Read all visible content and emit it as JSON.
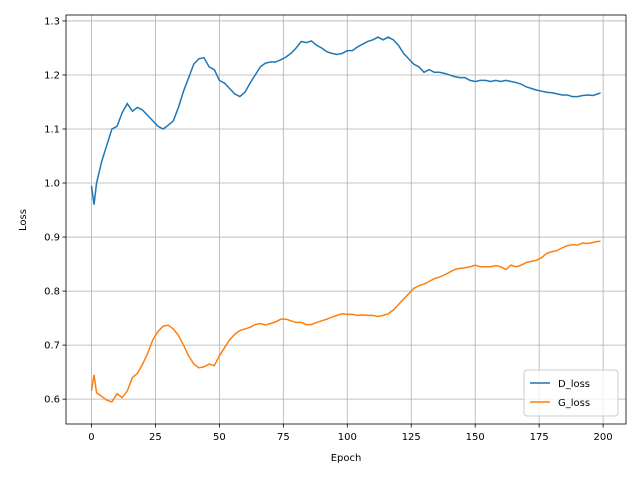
{
  "chart_data": {
    "type": "line",
    "xlabel": "Epoch",
    "ylabel": "Loss",
    "x": [
      0,
      1,
      2,
      4,
      6,
      8,
      10,
      12,
      14,
      16,
      18,
      20,
      22,
      24,
      26,
      28,
      30,
      32,
      34,
      36,
      38,
      40,
      42,
      44,
      46,
      48,
      50,
      52,
      54,
      56,
      58,
      60,
      62,
      64,
      66,
      68,
      70,
      72,
      74,
      76,
      78,
      80,
      82,
      84,
      86,
      88,
      90,
      92,
      94,
      96,
      98,
      100,
      102,
      104,
      106,
      108,
      110,
      112,
      114,
      116,
      118,
      120,
      122,
      124,
      126,
      128,
      130,
      132,
      134,
      136,
      138,
      140,
      142,
      144,
      146,
      148,
      150,
      152,
      154,
      156,
      158,
      160,
      162,
      164,
      166,
      168,
      170,
      172,
      174,
      176,
      178,
      180,
      182,
      184,
      186,
      188,
      190,
      192,
      194,
      196,
      198,
      199
    ],
    "series": [
      {
        "name": "D_loss",
        "color": "#1f77b4",
        "values": [
          0.995,
          0.96,
          1.0,
          1.04,
          1.07,
          1.1,
          1.105,
          1.13,
          1.147,
          1.133,
          1.14,
          1.135,
          1.125,
          1.115,
          1.105,
          1.1,
          1.107,
          1.115,
          1.14,
          1.17,
          1.195,
          1.22,
          1.23,
          1.232,
          1.215,
          1.21,
          1.19,
          1.185,
          1.175,
          1.165,
          1.16,
          1.168,
          1.185,
          1.2,
          1.215,
          1.222,
          1.224,
          1.224,
          1.228,
          1.233,
          1.24,
          1.25,
          1.262,
          1.26,
          1.263,
          1.255,
          1.25,
          1.243,
          1.24,
          1.238,
          1.24,
          1.245,
          1.245,
          1.252,
          1.257,
          1.262,
          1.265,
          1.27,
          1.265,
          1.27,
          1.265,
          1.255,
          1.24,
          1.23,
          1.22,
          1.215,
          1.205,
          1.21,
          1.205,
          1.205,
          1.203,
          1.2,
          1.197,
          1.195,
          1.195,
          1.19,
          1.188,
          1.19,
          1.19,
          1.188,
          1.19,
          1.188,
          1.19,
          1.188,
          1.186,
          1.183,
          1.178,
          1.175,
          1.172,
          1.17,
          1.168,
          1.167,
          1.165,
          1.163,
          1.163,
          1.16,
          1.16,
          1.162,
          1.163,
          1.162,
          1.165,
          1.167
        ]
      },
      {
        "name": "G_loss",
        "color": "#ff7f0e",
        "values": [
          0.615,
          0.645,
          0.612,
          0.605,
          0.598,
          0.595,
          0.61,
          0.603,
          0.615,
          0.64,
          0.648,
          0.665,
          0.685,
          0.71,
          0.725,
          0.735,
          0.737,
          0.73,
          0.718,
          0.7,
          0.68,
          0.665,
          0.658,
          0.66,
          0.665,
          0.662,
          0.68,
          0.695,
          0.71,
          0.72,
          0.727,
          0.73,
          0.733,
          0.738,
          0.74,
          0.737,
          0.74,
          0.743,
          0.748,
          0.748,
          0.745,
          0.742,
          0.742,
          0.738,
          0.738,
          0.742,
          0.745,
          0.748,
          0.752,
          0.755,
          0.758,
          0.757,
          0.757,
          0.755,
          0.756,
          0.755,
          0.755,
          0.753,
          0.755,
          0.758,
          0.765,
          0.775,
          0.785,
          0.795,
          0.805,
          0.81,
          0.813,
          0.818,
          0.823,
          0.826,
          0.83,
          0.835,
          0.84,
          0.842,
          0.843,
          0.845,
          0.848,
          0.845,
          0.845,
          0.845,
          0.847,
          0.845,
          0.84,
          0.848,
          0.845,
          0.848,
          0.853,
          0.855,
          0.857,
          0.862,
          0.87,
          0.873,
          0.875,
          0.88,
          0.884,
          0.886,
          0.885,
          0.889,
          0.888,
          0.89,
          0.892,
          0.892
        ]
      }
    ],
    "xlim": [
      -9.95,
      208.95
    ],
    "xticks": [
      0,
      25,
      50,
      75,
      100,
      125,
      150,
      175,
      200
    ],
    "ylim": [
      0.554,
      1.311
    ],
    "yticks": [
      0.6,
      0.7,
      0.8,
      0.9,
      {
        "value": 1,
        "label": "1.0"
      },
      1.1,
      1.2,
      1.3
    ],
    "grid": true,
    "legend": "lower right"
  }
}
